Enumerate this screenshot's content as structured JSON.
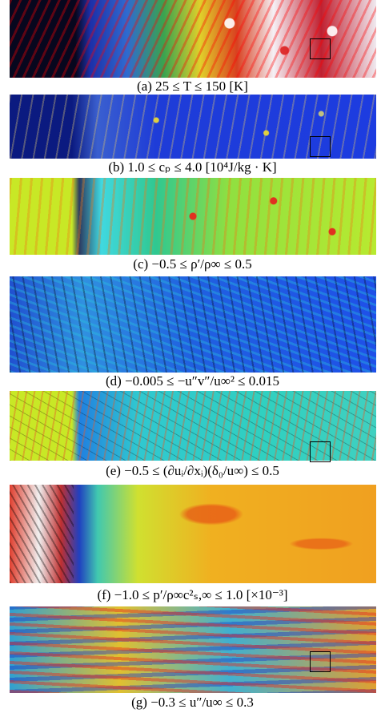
{
  "figure": {
    "panels": [
      {
        "caption": "(a) 25 ≤ T ≤ 150 [K]"
      },
      {
        "caption": "(b) 1.0 ≤ cₚ ≤ 4.0 [10⁴J/kg · K]"
      },
      {
        "caption": "(c) −0.5 ≤ ρ′/ρ∞ ≤ 0.5"
      },
      {
        "caption": "(d) −0.005 ≤ −u″v″/u∞² ≤ 0.015"
      },
      {
        "caption": "(e) −0.5 ≤ (∂uᵢ/∂xᵢ)(δ₀/u∞) ≤ 0.5"
      },
      {
        "caption": "(f) −1.0 ≤ p′/ρ∞c²ₛ,∞ ≤ 1.0 [×10⁻³]"
      },
      {
        "caption": "(g) −0.3 ≤ u″/u∞ ≤ 0.3"
      }
    ]
  }
}
